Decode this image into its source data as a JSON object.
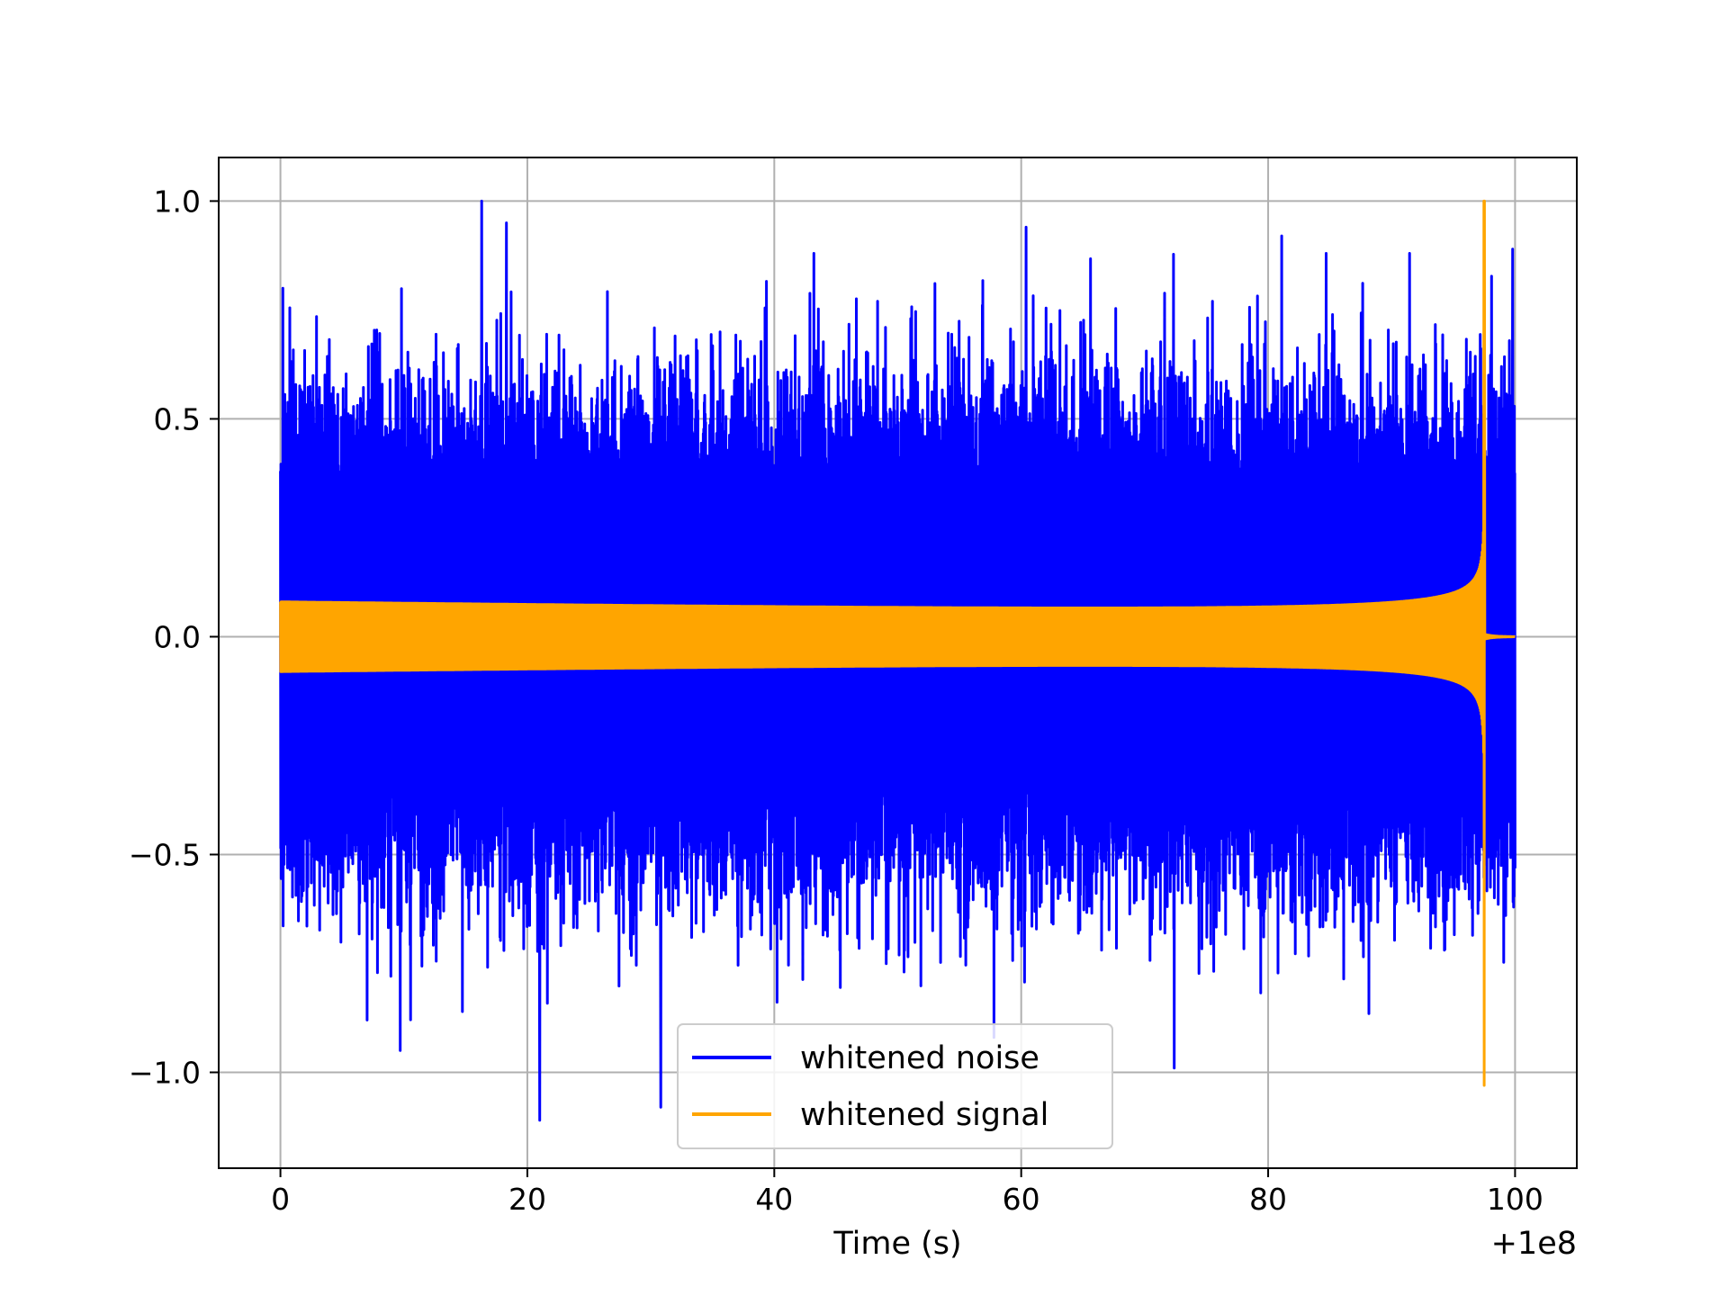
{
  "chart_data": {
    "type": "line",
    "title": "",
    "xlabel": "Time (s)",
    "ylabel": "",
    "x_offset_label": "+1e8",
    "xlim": [
      -5,
      105
    ],
    "ylim": [
      -1.22,
      1.1
    ],
    "x_ticks": [
      0,
      20,
      40,
      60,
      80,
      100
    ],
    "x_tick_labels": [
      "0",
      "20",
      "40",
      "60",
      "80",
      "100"
    ],
    "y_ticks": [
      -1.0,
      -0.5,
      0.0,
      0.5,
      1.0
    ],
    "y_tick_labels": [
      "−1.0",
      "−0.5",
      "0.0",
      "0.5",
      "1.0"
    ],
    "grid": true,
    "legend_position": "lower-center",
    "series": [
      {
        "name": "whitened noise",
        "color": "#0000ff",
        "description_range": [
          0,
          100
        ],
        "envelope": {
          "typical_amplitude": 0.6,
          "max": 1.0,
          "min": -1.11
        },
        "spikes": [
          {
            "x": 16.3,
            "y": 1.0
          },
          {
            "x": 18.3,
            "y": 0.95
          },
          {
            "x": 21.0,
            "y": -1.11
          },
          {
            "x": 9.7,
            "y": -0.95
          },
          {
            "x": 30.8,
            "y": -1.08
          },
          {
            "x": 72.4,
            "y": -0.99
          },
          {
            "x": 60.4,
            "y": 0.94
          },
          {
            "x": 81.1,
            "y": 0.92
          },
          {
            "x": 99.8,
            "y": 0.89
          },
          {
            "x": 57.8,
            "y": -0.92
          },
          {
            "x": 0.2,
            "y": 0.8
          },
          {
            "x": 75.5,
            "y": 0.77
          }
        ]
      },
      {
        "name": "whitened signal",
        "color": "#ffa500",
        "description_range": [
          0,
          100
        ],
        "envelope": {
          "start_amplitude": 0.04,
          "peak_x": 97.5,
          "peak": 1.0,
          "trough": -1.03
        }
      }
    ]
  }
}
